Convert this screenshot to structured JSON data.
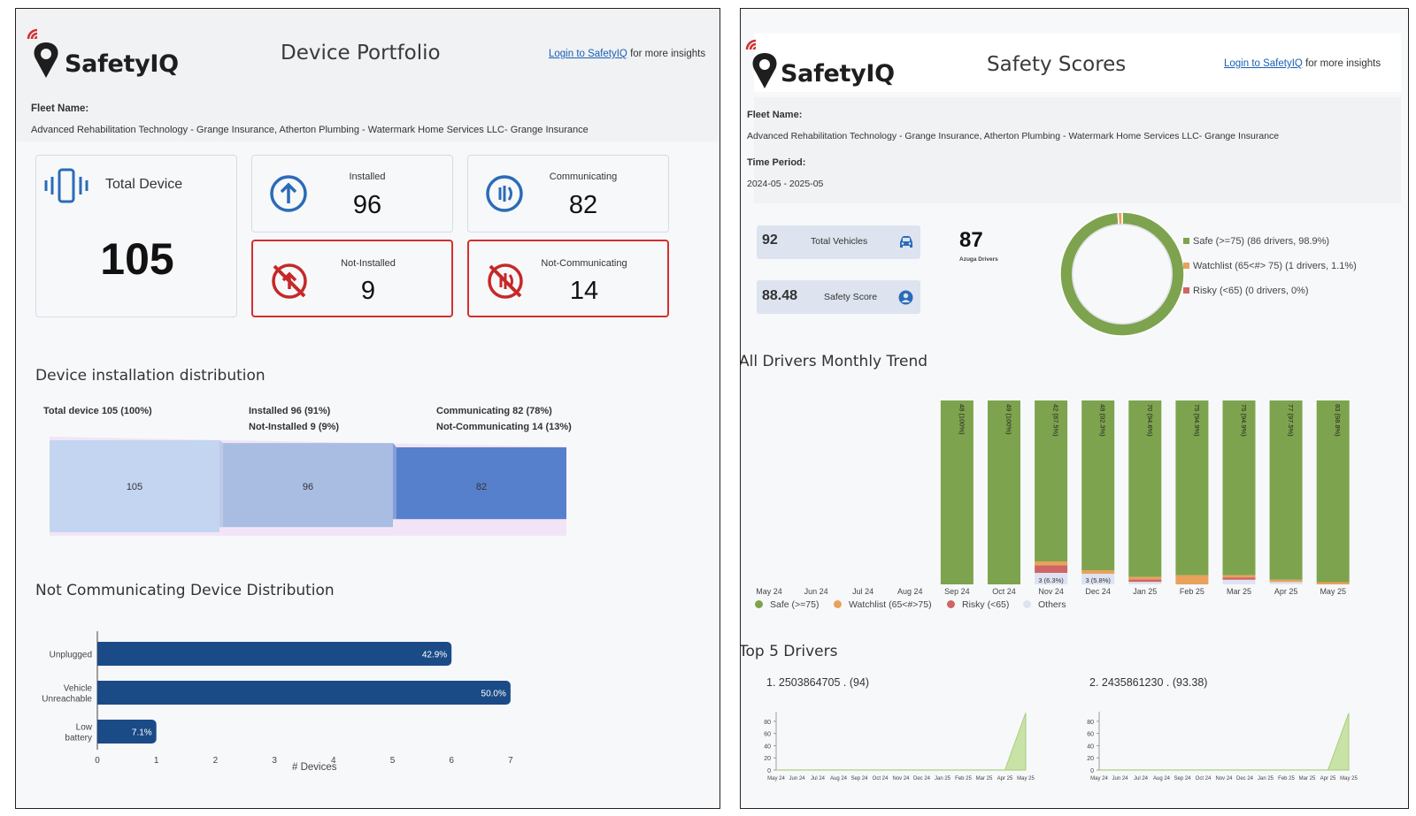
{
  "brand": "SafetyIQ",
  "login_link": "Login to SafetyIQ",
  "login_suffix": " for more insights",
  "fleet_label": "Fleet Name:",
  "fleet_name": "Advanced Rehabilitation Technology - Grange Insurance, Atherton Plumbing - Watermark Home Services LLC- Grange Insurance",
  "device_portfolio": {
    "title": "Device Portfolio",
    "total_label": "Total Device",
    "total_value": "105",
    "installed_label": "Installed",
    "installed_value": "96",
    "communicating_label": "Communicating",
    "communicating_value": "82",
    "not_installed_label": "Not-Installed",
    "not_installed_value": "9",
    "not_communicating_label": "Not-Communicating",
    "not_communicating_value": "14",
    "installation_title": "Device installation distribution",
    "sankey": {
      "label_total": "Total device 105 (100%)",
      "label_installed": "Installed 96 (91%)",
      "label_not_installed": "Not-Installed 9 (9%)",
      "label_communicating": "Communicating 82 (78%)",
      "label_not_communicating": "Not-Communicating 14 (13%)",
      "nodes": [
        {
          "name": "Total device",
          "value": 105,
          "color": "#c3d5f0"
        },
        {
          "name": "Installed",
          "value": 96,
          "color": "#a9bde3"
        },
        {
          "name": "Communicating",
          "value": 82,
          "color": "#5680cb"
        }
      ]
    },
    "notcomm_title": "Not Communicating Device Distribution",
    "notcomm_xlabel": "# Devices",
    "notcomm_ticks": [
      "0",
      "1",
      "2",
      "3",
      "4",
      "5",
      "6",
      "7"
    ]
  },
  "safety_scores": {
    "title": "Safety Scores",
    "time_label": "Time Period:",
    "time_value": "2024-05 - 2025-05",
    "total_vehicles_value": "92",
    "total_vehicles_label": "Total Vehicles",
    "safety_score_value": "88.48",
    "safety_score_label": "Safety Score",
    "azuga_value": "87",
    "azuga_label": "Azuga Drivers",
    "donut_legend": [
      {
        "label": "Safe (>=75) (86 drivers, 98.9%)",
        "color": "#7ea34e"
      },
      {
        "label": "Watchlist (65<#> 75) (1 drivers, 1.1%)",
        "color": "#e8a25b"
      },
      {
        "label": "Risky (<65) (0 drivers, 0%)",
        "color": "#d06565"
      }
    ],
    "trend_title": "All Drivers Monthly Trend",
    "trend_legend": [
      {
        "label": "Safe (>=75)",
        "color": "#7ea34e"
      },
      {
        "label": "Watchlist (65<#>75)",
        "color": "#e8a25b"
      },
      {
        "label": "Risky (<65)",
        "color": "#d06565"
      },
      {
        "label": "Others",
        "color": "#dde3f2"
      }
    ],
    "top_title": "Top 5 Drivers",
    "driver1": "1. 2503864705 . (94)",
    "driver2": "2. 2435861230 . (93.38)",
    "spark_yticks": [
      "80",
      "60",
      "40",
      "20",
      "0"
    ],
    "spark_months": [
      "May 24",
      "Jun 24",
      "Jul 24",
      "Aug 24",
      "Sep 24",
      "Oct 24",
      "Nov 24",
      "Dec 24",
      "Jan 25",
      "Feb 25",
      "Mar 25",
      "Apr 25",
      "May 25"
    ]
  },
  "chart_data": [
    {
      "type": "bar",
      "title": "Not Communicating Device Distribution",
      "xlabel": "# Devices",
      "orientation": "horizontal",
      "categories": [
        "Unplugged",
        "Vehicle Unreachable",
        "Low battery"
      ],
      "values": [
        6,
        7,
        1
      ],
      "data_labels": [
        "42.9%",
        "50.0%",
        "7.1%"
      ],
      "xlim": [
        0,
        7.5
      ],
      "color": "#1b4b87"
    },
    {
      "type": "bar",
      "title": "All Drivers Monthly Trend",
      "stacked": true,
      "categories": [
        "May 24",
        "Jun 24",
        "Jul 24",
        "Aug 24",
        "Sep 24",
        "Oct 24",
        "Nov 24",
        "Dec 24",
        "Jan 25",
        "Feb 25",
        "Mar 25",
        "Apr 25",
        "May 25"
      ],
      "series": [
        {
          "name": "Safe (>=75)",
          "values": [
            0,
            0,
            0,
            0,
            48,
            49,
            42,
            48,
            70,
            75,
            75,
            77,
            83
          ],
          "labels": [
            "",
            "",
            "",
            "",
            "48 (100%)",
            "49 (100%)",
            "42 (87.5%)",
            "48 (92.3%)",
            "70 (94.6%)",
            "75 (94.9%)",
            "75 (94.9%)",
            "77 (97.5%)",
            "83 (98.8%)"
          ]
        },
        {
          "name": "Watchlist (65<#>75)",
          "values": [
            0,
            0,
            0,
            0,
            0,
            0,
            1,
            1,
            1,
            4,
            1,
            1,
            1
          ]
        },
        {
          "name": "Risky (<65)",
          "values": [
            0,
            0,
            0,
            0,
            0,
            0,
            2,
            0,
            1,
            0,
            1,
            0,
            0
          ]
        },
        {
          "name": "Others",
          "values": [
            0,
            0,
            0,
            0,
            0,
            0,
            3,
            3,
            1,
            0,
            2,
            1,
            0
          ],
          "labels": [
            "",
            "",
            "",
            "",
            "",
            "",
            "3 (6.3%)",
            "3 (5.8%)",
            "",
            "",
            "",
            "",
            ""
          ]
        }
      ]
    },
    {
      "type": "pie",
      "title": "",
      "categories": [
        "Safe (>=75)",
        "Watchlist (65<#> 75)",
        "Risky (<65)"
      ],
      "values": [
        98.9,
        1.1,
        0
      ]
    },
    {
      "type": "area",
      "title": "1. 2503864705 . (94)",
      "x": [
        "May 24",
        "Jun 24",
        "Jul 24",
        "Aug 24",
        "Sep 24",
        "Oct 24",
        "Nov 24",
        "Dec 24",
        "Jan 25",
        "Feb 25",
        "Mar 25",
        "Apr 25",
        "May 25"
      ],
      "y": [
        0,
        0,
        0,
        0,
        0,
        0,
        0,
        0,
        0,
        0,
        0,
        0,
        94
      ],
      "ylim": [
        0,
        90
      ]
    },
    {
      "type": "area",
      "title": "2. 2435861230 . (93.38)",
      "x": [
        "May 24",
        "Jun 24",
        "Jul 24",
        "Aug 24",
        "Sep 24",
        "Oct 24",
        "Nov 24",
        "Dec 24",
        "Jan 25",
        "Feb 25",
        "Mar 25",
        "Apr 25",
        "May 25"
      ],
      "y": [
        0,
        0,
        0,
        0,
        0,
        0,
        0,
        0,
        0,
        0,
        0,
        0,
        93.38
      ],
      "ylim": [
        0,
        90
      ]
    }
  ]
}
